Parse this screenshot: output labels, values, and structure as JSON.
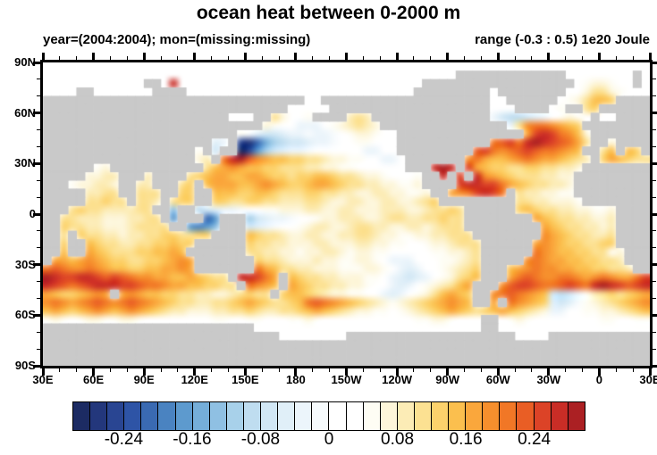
{
  "header": {
    "title": "ocean heat between 0-2000 m",
    "subtitle_left": "year=(2004:2004); mon=(missing:missing)",
    "subtitle_right": "range (-0.3 : 0.5) 1e20 Joule"
  },
  "chart_data": {
    "type": "heatmap",
    "title": "ocean heat between 0-2000 m",
    "subtitle_left": "year=(2004:2004); mon=(missing:missing)",
    "subtitle_right": "range (-0.3 : 0.5) 1e20 Joule",
    "units": "1e20 Joule",
    "data_range": [
      -0.3,
      0.5
    ],
    "projection": "equirectangular, lon from 30E eastward 360deg, lat 90N to 90S",
    "x_axis": {
      "tick_labels": [
        "30E",
        "60E",
        "90E",
        "120E",
        "150E",
        "180",
        "150W",
        "120W",
        "90W",
        "60W",
        "30W",
        "0",
        "30E"
      ],
      "major_interval_deg": 30,
      "minor_interval_deg": 10
    },
    "y_axis": {
      "tick_labels": [
        "90N",
        "60N",
        "30N",
        "0",
        "30S",
        "60S",
        "90S"
      ],
      "major_interval_deg": 30,
      "minor_interval_deg": 10
    },
    "colorbar": {
      "n_cells": 30,
      "cell_value_step": 0.02,
      "cell_value_min": -0.3,
      "cell_value_max": 0.3,
      "labels": [
        "-0.24",
        "-0.16",
        "-0.08",
        "0",
        "0.08",
        "0.16",
        "0.24"
      ],
      "label_values": [
        -0.24,
        -0.16,
        -0.08,
        0,
        0.08,
        0.16,
        0.24
      ],
      "label_cell_boundaries": [
        3,
        7,
        11,
        15,
        19,
        23,
        27
      ],
      "colors": [
        "#1c2b63",
        "#23377c",
        "#294592",
        "#2e54a6",
        "#3a6ab2",
        "#4a83c1",
        "#5d9ace",
        "#75aed9",
        "#8fc0e3",
        "#a8d1ea",
        "#bfddf0",
        "#d1e7f5",
        "#e0eff8",
        "#ecf5fb",
        "#f7fbfd",
        "#ffffff",
        "#ffffff",
        "#fefdf4",
        "#fdf6da",
        "#fcecb6",
        "#fce192",
        "#fcd26c",
        "#fbbf4e",
        "#faa73c",
        "#f68f2d",
        "#f17726",
        "#e95e25",
        "#dc4327",
        "#c92d26",
        "#ab2023"
      ]
    },
    "map": {
      "land_color": "#c9c9c9",
      "no_data_color": "#ffffff",
      "grid_cols": 72,
      "grid_rows": 36,
      "cell_deg": 5,
      "origin": "top-left cell = lat 85-90N, lon 30-35E",
      "palette_chars": "abcdefghijklmnopqrstuvwxyzABCD",
      "land_char": "#",
      "white_char": ".",
      "rows": [
        "........................................................................",
        ".................................................#############........#.",
        "............##.C.............................##################.rssr..#.",
        "....##.......####...........................#########.########..suusr...",
        "###############################..####################..######.rsuwwv####",
        "#############################.....###################...####.r##uv######",
        "######################...##us..r####tut##############nlkklmnprsr.#..####",
        "##########################sr..nnn.rstuts###############nuyzzyxwv########",
        "#######################romllmnnonno.rssr..###############xBCBzyws#######",
        "####################mn#cbehjkllmnno..rr...###########zABzCDCBAzxu##s####",
        "##################r#l##acgjlmnno......nn..#########ABzyzABAzzyxw##uw#wv#",
        "##################st#zCDAyxwwvvuutssrr..nn.#######yzxwwxyzyxxwvut#vxwvuu",
        "######rs###########uwxyxwwvvuuuttssrr......###CDC#Bxwvvuuvvuutts########",
        "#####sstt###t####uvwxxwwxxwvvuvvwwvuutssr...r##C#B#Cyxwvuuuttss#########",
        "###rsstts##tt###uv#wxxxwwxyxwvvwxxwvuuttssrrs####BCCBBzxwvuutts#########",
        "#####ttuu##uuu##vv##wwwvvwwvuuuvvuuttssttssrrs##xyzBCBz#uttssrr#########",
        "#####uuvuu#uut#uvv##vvuuvvuutttuutssttssttsstuv#########uuttsssr########",
        "###uvuuttttuu##i##klmnno..rrsssttssttssstttsstuuvu######vwvuuttssrrs####",
        "##uutttsssttuu#g###eg###jlmnno..rsstttsstuuttuuvuu########xwvuuttsst####",
        "##vuuttssstuuuu##gfgi###lmno..rsttsstuuttssttstuuu#########xwvuuttst####",
        "##u#vuuttsttuuvvuuvv####wvuutssttssttuutssrrssttuuu########yxwvuuttu####",
        "##v##wvuuttuuvvwvv######vuuttsssttsssttssrr..rsstuuu######xyxwvvuuvv####",
        "##w##xwvuuuvvwwxw#######uuttssrssttsrssrr.....rrsstu######zyxwwvvuurs###",
        "#xxwxyxwvvuuvvwxyx#######vuutssstssrrssr.nnn...rrstu#####yzyxxwwvvuut###",
        "zAzyyzyxwwvvwwxxyx#######zxwuuttsssrrrssr.nmn..rstuv###wxyzyyxxwwvvuut##",
        "DCBBCCBABAzyyxxwwxwvuu#CCBzx#wvuuttsssrr.nmlmn.rsuvw###xzAzyyzzyxyzyxxzB",
        "CBAzABCCCBBAzzyxxwwvvuu#zyxw#xwvuuttssr..nmn.rstuwx###yABBAzzABAzCDCBABC",
        "xwvvwxyx#xyxwwvvuuttsstuvuu#vwwvutssrr..nmn.rsuwxwv##yzAzyxwlklnrtuvuvwx",
        "yzyxyzAzyzAzyxwvuuttuuvwxwvuuvwzAzyxwvutsrstuvwxyxw##x#zyxwvmlmorstuvwxy",
        "wxwvwxyxwxyxwvuttsssttuuvuttuuvwxwvutssrr.rstuvwxwvuvwxwvutsnn..rrsstuvw",
        "rsr.rssrrssr........rr..rr...rrsr...........rrssr...##.rsr........rr..rr",
        "#########################...........................##..................",
        "############################........####################....############",
        "########################################################################",
        "########################################################################",
        "########################################################################"
      ]
    }
  }
}
